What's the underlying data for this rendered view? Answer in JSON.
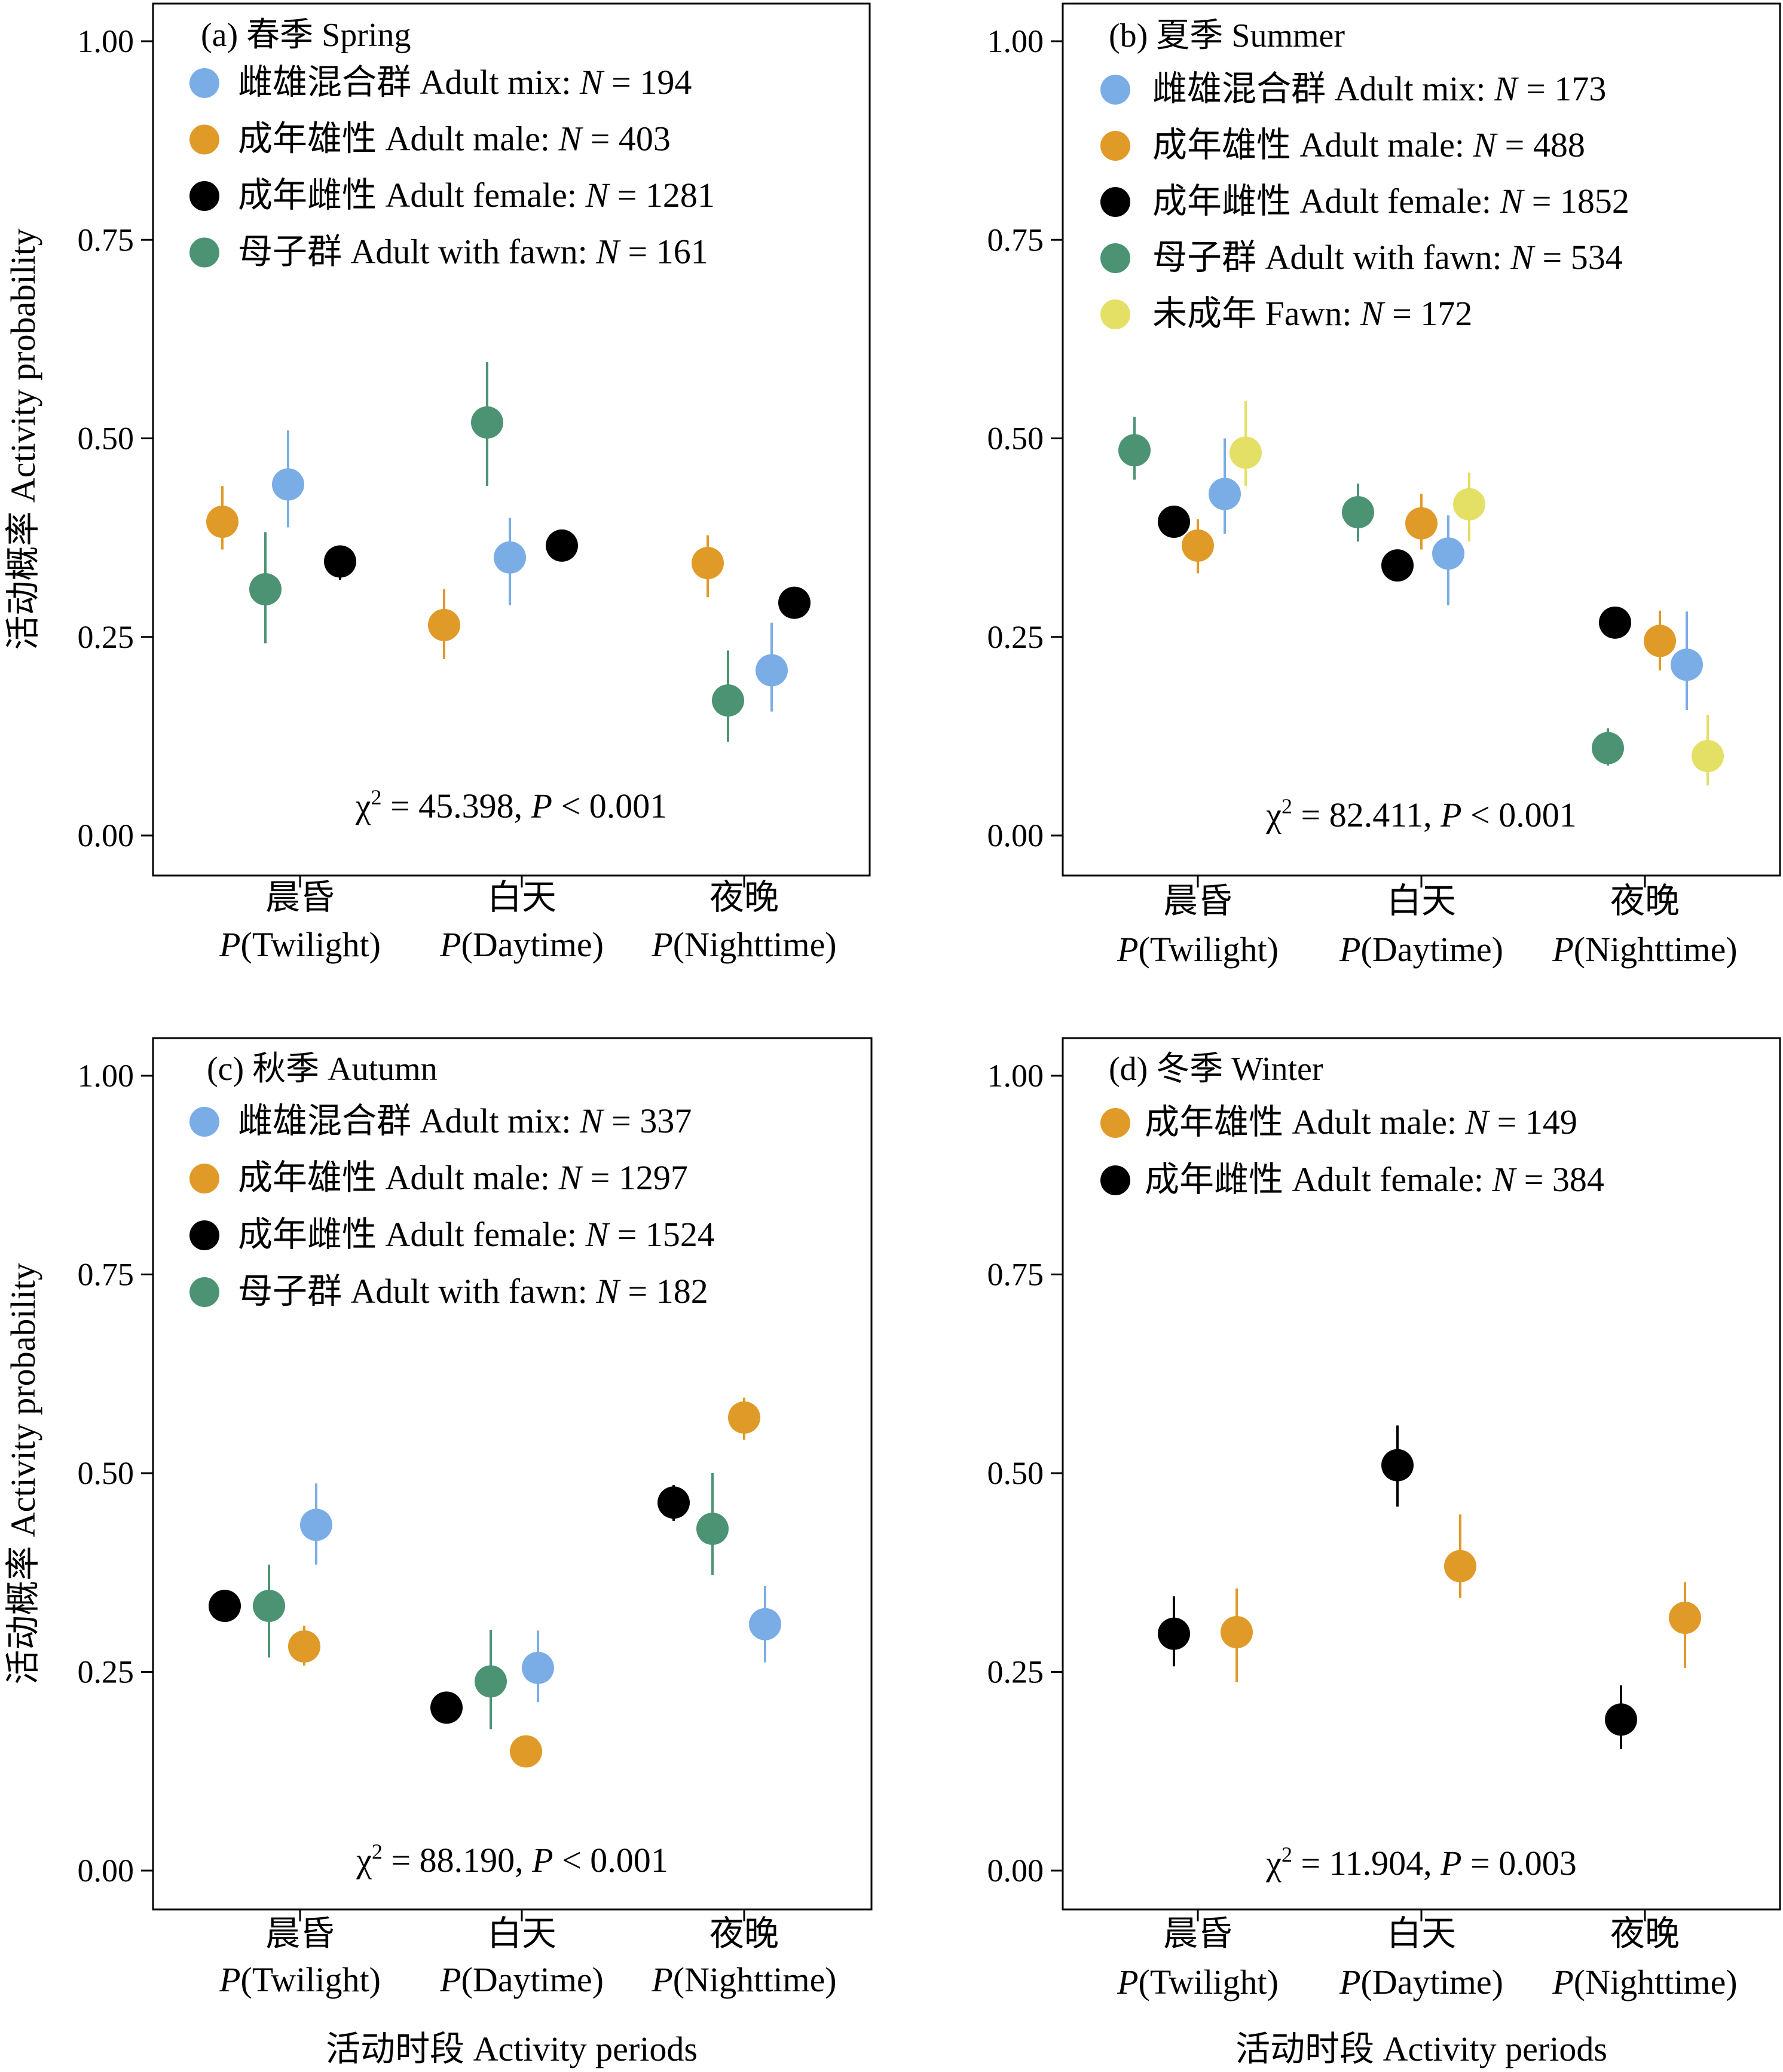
{
  "y_axis_title": "活动概率 Activity probability",
  "x_axis_title": "活动时段 Activity periods",
  "y_ticks": [
    "0.00",
    "0.25",
    "0.50",
    "0.75",
    "1.00"
  ],
  "periods": [
    {
      "cn": "晨昏",
      "prefix": "P",
      "en": "(Twilight)"
    },
    {
      "cn": "白天",
      "prefix": "P",
      "en": "(Daytime)"
    },
    {
      "cn": "夜晚",
      "prefix": "P",
      "en": "(Nighttime)"
    }
  ],
  "colors": {
    "adult_mix": "#7AADE6",
    "adult_male": "#E09A28",
    "adult_female": "#000000",
    "adult_with_fawn": "#4C9374",
    "fawn": "#E4E066"
  },
  "chart_data": [
    {
      "type": "scatter",
      "panel": "a",
      "title": "(a) 春季  Spring",
      "ylim": [
        0,
        1.05
      ],
      "categories": [
        "晨昏 P(Twilight)",
        "白天 P(Daytime)",
        "夜晚 P(Nighttime)"
      ],
      "stat": {
        "text1": "χ",
        "sup": "2",
        "text2": " = 45.398, ",
        "p": "P",
        "text3": " < 0.001"
      },
      "series": [
        {
          "key": "adult_male",
          "cn": "成年雄性",
          "en": "Adult male: ",
          "n": " = 403",
          "values": [
            0.395,
            0.265,
            0.343
          ],
          "lower": [
            0.36,
            0.222,
            0.3
          ],
          "upper": [
            0.44,
            0.31,
            0.378
          ]
        },
        {
          "key": "adult_with_fawn",
          "cn": "母子群",
          "en": "Adult with fawn: ",
          "n": " = 161",
          "values": [
            0.31,
            0.52,
            0.17
          ],
          "lower": [
            0.242,
            0.44,
            0.118
          ],
          "upper": [
            0.382,
            0.596,
            0.233
          ]
        },
        {
          "key": "adult_mix",
          "cn": "雌雄混合群",
          "en": "Adult mix: ",
          "n": " = 194",
          "values": [
            0.442,
            0.35,
            0.208
          ],
          "lower": [
            0.388,
            0.29,
            0.156
          ],
          "upper": [
            0.51,
            0.4,
            0.268
          ]
        },
        {
          "key": "adult_female",
          "cn": "成年雌性",
          "en": "Adult female: ",
          "n": " = 1281",
          "values": [
            0.345,
            0.365,
            0.293
          ],
          "lower": [
            0.322,
            0.348,
            0.275
          ],
          "upper": [
            0.363,
            0.383,
            0.313
          ]
        }
      ],
      "legend_order": [
        "adult_mix",
        "adult_male",
        "adult_female",
        "adult_with_fawn"
      ]
    },
    {
      "type": "scatter",
      "panel": "b",
      "title": "(b) 夏季  Summer",
      "ylim": [
        0,
        1.05
      ],
      "categories": [
        "晨昏 P(Twilight)",
        "白天 P(Daytime)",
        "夜晚 P(Nighttime)"
      ],
      "stat": {
        "text1": "χ",
        "sup": "2",
        "text2": " = 82.411, ",
        "p": "P",
        "text3": " < 0.001"
      },
      "series": [
        {
          "key": "adult_with_fawn",
          "cn": "母子群",
          "en": "Adult with fawn: ",
          "n": " = 534",
          "values": [
            0.485,
            0.407,
            0.11
          ],
          "lower": [
            0.448,
            0.37,
            0.088
          ],
          "upper": [
            0.527,
            0.443,
            0.135
          ]
        },
        {
          "key": "adult_female",
          "cn": "成年雌性",
          "en": "Adult female: ",
          "n": " = 1852",
          "values": [
            0.395,
            0.34,
            0.268
          ],
          "lower": [
            0.377,
            0.323,
            0.252
          ],
          "upper": [
            0.415,
            0.358,
            0.285
          ]
        },
        {
          "key": "adult_male",
          "cn": "成年雄性",
          "en": "Adult male: ",
          "n": " = 488",
          "values": [
            0.365,
            0.393,
            0.245
          ],
          "lower": [
            0.33,
            0.36,
            0.208
          ],
          "upper": [
            0.398,
            0.43,
            0.283
          ]
        },
        {
          "key": "adult_mix",
          "cn": "雌雄混合群",
          "en": "Adult mix: ",
          "n": " = 173",
          "values": [
            0.43,
            0.355,
            0.215
          ],
          "lower": [
            0.38,
            0.29,
            0.158
          ],
          "upper": [
            0.5,
            0.403,
            0.282
          ]
        },
        {
          "key": "fawn",
          "cn": "未成年",
          "en": "Fawn: ",
          "n": " = 172",
          "values": [
            0.482,
            0.417,
            0.1
          ],
          "lower": [
            0.44,
            0.37,
            0.063
          ],
          "upper": [
            0.547,
            0.457,
            0.152
          ]
        }
      ],
      "legend_order": [
        "adult_mix",
        "adult_male",
        "adult_female",
        "adult_with_fawn",
        "fawn"
      ]
    },
    {
      "type": "scatter",
      "panel": "c",
      "title": "(c) 秋季  Autumn",
      "ylim": [
        0,
        1.05
      ],
      "categories": [
        "晨昏 P(Twilight)",
        "白天 P(Daytime)",
        "夜晚 P(Nighttime)"
      ],
      "stat": {
        "text1": "χ",
        "sup": "2",
        "text2": " = 88.190, ",
        "p": "P",
        "text3": " < 0.001"
      },
      "series": [
        {
          "key": "adult_female",
          "cn": "成年雌性",
          "en": "Adult female: ",
          "n": " = 1524",
          "values": [
            0.333,
            0.205,
            0.463
          ],
          "lower": [
            0.313,
            0.19,
            0.44
          ],
          "upper": [
            0.352,
            0.22,
            0.485
          ]
        },
        {
          "key": "adult_with_fawn",
          "cn": "母子群",
          "en": "Adult with fawn: ",
          "n": " = 182",
          "values": [
            0.333,
            0.238,
            0.43
          ],
          "lower": [
            0.268,
            0.178,
            0.372
          ],
          "upper": [
            0.385,
            0.303,
            0.5
          ]
        },
        {
          "key": "adult_male",
          "cn": "成年雄性",
          "en": "Adult male: ",
          "n": " = 1297",
          "values": [
            0.282,
            0.15,
            0.57
          ],
          "lower": [
            0.258,
            0.133,
            0.542
          ],
          "upper": [
            0.308,
            0.17,
            0.595
          ]
        },
        {
          "key": "adult_mix",
          "cn": "雌雄混合群",
          "en": "Adult mix: ",
          "n": " = 337",
          "values": [
            0.435,
            0.255,
            0.31
          ],
          "lower": [
            0.385,
            0.212,
            0.262
          ],
          "upper": [
            0.487,
            0.302,
            0.358
          ]
        }
      ],
      "legend_order": [
        "adult_mix",
        "adult_male",
        "adult_female",
        "adult_with_fawn"
      ]
    },
    {
      "type": "scatter",
      "panel": "d",
      "title": "(d) 冬季 Winter",
      "ylim": [
        0,
        1.05
      ],
      "categories": [
        "晨昏 P(Twilight)",
        "白天 P(Daytime)",
        "夜晚 P(Nighttime)"
      ],
      "stat": {
        "text1": "χ",
        "sup": "2",
        "text2": " = 11.904, ",
        "p": "P",
        "text3": " = 0.003"
      },
      "series": [
        {
          "key": "adult_female",
          "cn": "成年雌性",
          "en": "Adult female: ",
          "n": " = 384",
          "values": [
            0.298,
            0.51,
            0.19
          ],
          "lower": [
            0.257,
            0.458,
            0.153
          ],
          "upper": [
            0.345,
            0.56,
            0.233
          ]
        },
        {
          "key": "adult_male",
          "cn": "成年雄性",
          "en": "Adult male: ",
          "n": " = 149",
          "values": [
            0.3,
            0.383,
            0.318
          ],
          "lower": [
            0.237,
            0.343,
            0.255
          ],
          "upper": [
            0.355,
            0.448,
            0.363
          ]
        }
      ],
      "legend_order": [
        "adult_male",
        "adult_female"
      ]
    }
  ]
}
